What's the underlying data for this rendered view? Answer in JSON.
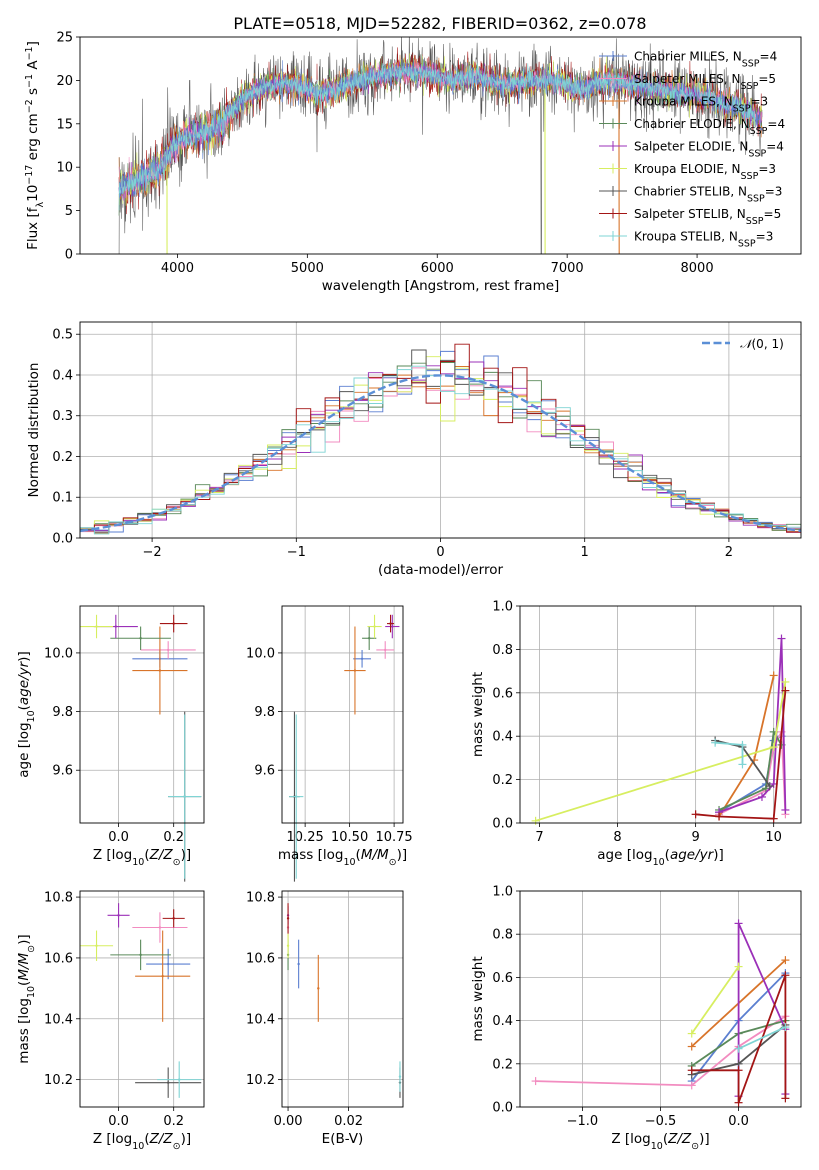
{
  "title": "PLATE=0518, MJD=52282, FIBERID=0362, z=0.078",
  "colors": {
    "Chabrier MILES": "#5b7fd0",
    "Salpeter MILES": "#f28cc0",
    "Kroupa MILES": "#d8742a",
    "Chabrier ELODIE": "#5a8a5a",
    "Salpeter ELODIE": "#9b30b8",
    "Kroupa ELODIE": "#d7ee60",
    "Chabrier STELIB": "#555555",
    "Salpeter STELIB": "#a31515",
    "Kroupa STELIB": "#7fd4d4",
    "gaussian": "#5b8fd6"
  },
  "chart_data": [
    {
      "id": "spectrum",
      "type": "line",
      "title": "PLATE=0518, MJD=52282, FIBERID=0362, z=0.078",
      "xlabel": "wavelength [Angstrom, rest frame]",
      "ylabel": "Flux [f_λ10^-17 erg cm^-2 s^-1 A^-1]",
      "xlim": [
        3250,
        8800
      ],
      "ylim": [
        0,
        25
      ],
      "xticks": [
        4000,
        5000,
        6000,
        7000,
        8000
      ],
      "yticks": [
        0,
        5,
        10,
        15,
        20,
        25
      ],
      "legend_position": "right",
      "legend": [
        {
          "model": "Chabrier MILES",
          "nssp": "4"
        },
        {
          "model": "Salpeter MILES",
          "nssp": "5"
        },
        {
          "model": "Kroupa MILES",
          "nssp": "3"
        },
        {
          "model": "Chabrier ELODIE",
          "nssp": "4"
        },
        {
          "model": "Salpeter ELODIE",
          "nssp": "4"
        },
        {
          "model": "Kroupa ELODIE",
          "nssp": "3"
        },
        {
          "model": "Chabrier STELIB",
          "nssp": "3"
        },
        {
          "model": "Salpeter STELIB",
          "nssp": "5"
        },
        {
          "model": "Kroupa STELIB",
          "nssp": "3"
        }
      ],
      "continuum": [
        [
          3550,
          7.5
        ],
        [
          3700,
          8.5
        ],
        [
          3850,
          9.5
        ],
        [
          3950,
          12.0
        ],
        [
          4050,
          13.5
        ],
        [
          4200,
          14.0
        ],
        [
          4350,
          15.0
        ],
        [
          4500,
          18.0
        ],
        [
          4700,
          19.5
        ],
        [
          4900,
          19.5
        ],
        [
          5100,
          18.5
        ],
        [
          5300,
          19.5
        ],
        [
          5500,
          20.5
        ],
        [
          5700,
          21.0
        ],
        [
          5900,
          21.0
        ],
        [
          6100,
          20.0
        ],
        [
          6300,
          20.5
        ],
        [
          6500,
          19.5
        ],
        [
          6700,
          20.0
        ],
        [
          6900,
          20.0
        ],
        [
          7100,
          19.0
        ],
        [
          7300,
          20.0
        ],
        [
          7500,
          19.5
        ],
        [
          7700,
          19.0
        ],
        [
          7900,
          18.5
        ],
        [
          8100,
          18.0
        ],
        [
          8300,
          17.0
        ],
        [
          8500,
          15.5
        ]
      ],
      "dropouts": [
        {
          "series": "Kroupa ELODIE",
          "x": 3920
        },
        {
          "series": "Kroupa ELODIE",
          "x": 6830
        },
        {
          "series": "Chabrier STELIB",
          "x": 6800
        },
        {
          "series": "Kroupa MILES",
          "x": 7400
        }
      ]
    },
    {
      "id": "residuals",
      "type": "histogram",
      "xlabel": "(data-model)/error",
      "ylabel": "Normed distribution",
      "xlim": [
        -2.5,
        2.5
      ],
      "ylim": [
        0,
        0.53
      ],
      "xticks": [
        -2,
        -1,
        0,
        1,
        2
      ],
      "yticks": [
        0.0,
        0.1,
        0.2,
        0.3,
        0.4,
        0.5
      ],
      "grid": true,
      "legend_position": "top-right",
      "reference": {
        "label": "N(0,1)",
        "mean": 0,
        "sigma": 1
      },
      "bin_edges": [
        -2.6,
        2.6
      ],
      "bin_width": 0.1
    },
    {
      "id": "age-vs-Z",
      "type": "scatter",
      "xlabel": "Z [log10(Z/Z☉)]",
      "ylabel": "age [log10(age/yr)]",
      "xlim": [
        -0.14,
        0.31
      ],
      "ylim": [
        9.42,
        10.16
      ],
      "xticks": [
        0.0,
        0.2
      ],
      "yticks": [
        9.6,
        9.8,
        10.0
      ],
      "grid": true,
      "points": [
        {
          "series": "Chabrier MILES",
          "x": 0.15,
          "y": 9.98,
          "xerr": 0.1,
          "yerr": 0.03
        },
        {
          "series": "Salpeter MILES",
          "x": 0.18,
          "y": 10.01,
          "xerr": 0.1,
          "yerr": 0.03
        },
        {
          "series": "Kroupa MILES",
          "x": 0.15,
          "y": 9.94,
          "xerr": 0.1,
          "yerr": 0.15
        },
        {
          "series": "Chabrier ELODIE",
          "x": 0.08,
          "y": 10.05,
          "xerr": 0.11,
          "yerr": 0.04
        },
        {
          "series": "Salpeter ELODIE",
          "x": -0.01,
          "y": 10.09,
          "xerr": 0.08,
          "yerr": 0.04
        },
        {
          "series": "Kroupa ELODIE",
          "x": -0.08,
          "y": 10.09,
          "xerr": 0.06,
          "yerr": 0.04
        },
        {
          "series": "Chabrier STELIB",
          "x": 0.24,
          "y": 9.51,
          "xerr": 0.06,
          "yerr": 0.29
        },
        {
          "series": "Salpeter STELIB",
          "x": 0.2,
          "y": 10.1,
          "xerr": 0.05,
          "yerr": 0.03
        },
        {
          "series": "Kroupa STELIB",
          "x": 0.24,
          "y": 9.51,
          "xerr": 0.06,
          "yerr": 0.28
        }
      ]
    },
    {
      "id": "age-vs-mass",
      "type": "scatter",
      "xlabel": "mass [log10(M/M☉)]",
      "ylabel": "",
      "xlim": [
        10.12,
        10.8
      ],
      "ylim": [
        9.42,
        10.16
      ],
      "xticks": [
        10.25,
        10.5,
        10.75
      ],
      "yticks": [
        9.6,
        9.8,
        10.0
      ],
      "grid": true,
      "points": [
        {
          "series": "Chabrier MILES",
          "x": 10.57,
          "y": 9.98,
          "xerr": 0.05,
          "yerr": 0.03
        },
        {
          "series": "Salpeter MILES",
          "x": 10.7,
          "y": 10.01,
          "xerr": 0.05,
          "yerr": 0.03
        },
        {
          "series": "Kroupa MILES",
          "x": 10.53,
          "y": 9.94,
          "xerr": 0.06,
          "yerr": 0.15
        },
        {
          "series": "Chabrier ELODIE",
          "x": 10.61,
          "y": 10.05,
          "xerr": 0.04,
          "yerr": 0.04
        },
        {
          "series": "Salpeter ELODIE",
          "x": 10.74,
          "y": 10.09,
          "xerr": 0.04,
          "yerr": 0.04
        },
        {
          "series": "Kroupa ELODIE",
          "x": 10.64,
          "y": 10.09,
          "xerr": 0.04,
          "yerr": 0.04
        },
        {
          "series": "Chabrier STELIB",
          "x": 10.19,
          "y": 9.51,
          "xerr": 0.03,
          "yerr": 0.29
        },
        {
          "series": "Salpeter STELIB",
          "x": 10.73,
          "y": 10.1,
          "xerr": 0.02,
          "yerr": 0.03
        },
        {
          "series": "Kroupa STELIB",
          "x": 10.2,
          "y": 9.51,
          "xerr": 0.04,
          "yerr": 0.28
        }
      ]
    },
    {
      "id": "weight-vs-age",
      "type": "line",
      "xlabel": "age [log10(age/yr)]",
      "ylabel": "mass weight",
      "xlim": [
        6.75,
        10.35
      ],
      "ylim": [
        0,
        1.0
      ],
      "xticks": [
        7,
        8,
        9,
        10
      ],
      "yticks": [
        0.0,
        0.2,
        0.4,
        0.6,
        0.8,
        1.0
      ],
      "grid": true,
      "series": [
        {
          "name": "Chabrier MILES",
          "x": [
            9.3,
            9.9,
            10.0,
            10.1
          ],
          "y": [
            0.05,
            0.18,
            0.38,
            0.4
          ]
        },
        {
          "name": "Salpeter MILES",
          "x": [
            9.3,
            9.9,
            10.0,
            10.1,
            10.15
          ],
          "y": [
            0.04,
            0.15,
            0.35,
            0.42,
            0.04
          ]
        },
        {
          "name": "Kroupa MILES",
          "x": [
            9.3,
            9.75,
            10.0
          ],
          "y": [
            0.03,
            0.29,
            0.68
          ]
        },
        {
          "name": "Chabrier ELODIE",
          "x": [
            9.3,
            9.9,
            10.0,
            10.1
          ],
          "y": [
            0.06,
            0.16,
            0.42,
            0.36
          ]
        },
        {
          "name": "Salpeter ELODIE",
          "x": [
            9.3,
            9.85,
            10.0,
            10.1,
            10.15
          ],
          "y": [
            0.05,
            0.12,
            0.18,
            0.85,
            0.06
          ]
        },
        {
          "name": "Kroupa ELODIE",
          "x": [
            6.95,
            10.0,
            10.15
          ],
          "y": [
            0.01,
            0.35,
            0.65
          ]
        },
        {
          "name": "Chabrier STELIB",
          "x": [
            9.25,
            9.6,
            9.95
          ],
          "y": [
            0.38,
            0.35,
            0.17
          ]
        },
        {
          "name": "Salpeter STELIB",
          "x": [
            9.0,
            9.3,
            10.0,
            10.15
          ],
          "y": [
            0.04,
            0.03,
            0.02,
            0.61
          ]
        },
        {
          "name": "Kroupa STELIB",
          "x": [
            9.25,
            9.6,
            9.6
          ],
          "y": [
            0.37,
            0.36,
            0.27
          ]
        }
      ]
    },
    {
      "id": "mass-vs-Z",
      "type": "scatter",
      "xlabel": "Z [log10(Z/Z☉)]",
      "ylabel": "mass [log10(M/M☉)]",
      "xlim": [
        -0.14,
        0.31
      ],
      "ylim": [
        10.11,
        10.82
      ],
      "xticks": [
        0.0,
        0.2
      ],
      "yticks": [
        10.2,
        10.4,
        10.6,
        10.8
      ],
      "grid": true,
      "points": [
        {
          "series": "Chabrier MILES",
          "x": 0.18,
          "y": 10.58,
          "xerr": 0.08,
          "yerr": 0.05
        },
        {
          "series": "Salpeter MILES",
          "x": 0.15,
          "y": 10.7,
          "xerr": 0.1,
          "yerr": 0.05
        },
        {
          "series": "Kroupa MILES",
          "x": 0.16,
          "y": 10.54,
          "xerr": 0.1,
          "yerr": 0.15
        },
        {
          "series": "Chabrier ELODIE",
          "x": 0.08,
          "y": 10.61,
          "xerr": 0.11,
          "yerr": 0.05
        },
        {
          "series": "Salpeter ELODIE",
          "x": 0.0,
          "y": 10.74,
          "xerr": 0.04,
          "yerr": 0.04
        },
        {
          "series": "Kroupa ELODIE",
          "x": -0.08,
          "y": 10.64,
          "xerr": 0.06,
          "yerr": 0.05
        },
        {
          "series": "Chabrier STELIB",
          "x": 0.18,
          "y": 10.19,
          "xerr": 0.12,
          "yerr": 0.05
        },
        {
          "series": "Salpeter STELIB",
          "x": 0.2,
          "y": 10.73,
          "xerr": 0.04,
          "yerr": 0.03
        },
        {
          "series": "Kroupa STELIB",
          "x": 0.22,
          "y": 10.2,
          "xerr": 0.08,
          "yerr": 0.06
        }
      ]
    },
    {
      "id": "mass-vs-ebv",
      "type": "scatter",
      "xlabel": "E(B-V)",
      "ylabel": "",
      "xlim": [
        -0.002,
        0.038
      ],
      "ylim": [
        10.11,
        10.82
      ],
      "xticks": [
        0.0,
        0.02
      ],
      "yticks": [
        10.2,
        10.4,
        10.6,
        10.8
      ],
      "grid": true,
      "points": [
        {
          "series": "Chabrier MILES",
          "x": 0.0035,
          "y": 10.58,
          "xerr": 0,
          "yerr": 0.08
        },
        {
          "series": "Salpeter MILES",
          "x": 0.0,
          "y": 10.7,
          "xerr": 0,
          "yerr": 0.04
        },
        {
          "series": "Kroupa MILES",
          "x": 0.01,
          "y": 10.5,
          "xerr": 0,
          "yerr": 0.11
        },
        {
          "series": "Chabrier ELODIE",
          "x": 0.0,
          "y": 10.61,
          "xerr": 0,
          "yerr": 0.05
        },
        {
          "series": "Salpeter ELODIE",
          "x": 0.0,
          "y": 10.74,
          "xerr": 0,
          "yerr": 0.03
        },
        {
          "series": "Kroupa ELODIE",
          "x": 0.0,
          "y": 10.64,
          "xerr": 0,
          "yerr": 0.04
        },
        {
          "series": "Chabrier STELIB",
          "x": 0.037,
          "y": 10.19,
          "xerr": 0,
          "yerr": 0.05
        },
        {
          "series": "Salpeter STELIB",
          "x": 0.0,
          "y": 10.73,
          "xerr": 0,
          "yerr": 0.05
        },
        {
          "series": "Kroupa STELIB",
          "x": 0.037,
          "y": 10.21,
          "xerr": 0,
          "yerr": 0.05
        }
      ]
    },
    {
      "id": "weight-vs-Z",
      "type": "line",
      "xlabel": "Z [log10(Z/Z☉)]",
      "ylabel": "mass weight",
      "xlim": [
        -1.4,
        0.4
      ],
      "ylim": [
        0,
        1.0
      ],
      "xticks": [
        -1.0,
        -0.5,
        0.0
      ],
      "yticks": [
        0.0,
        0.2,
        0.4,
        0.6,
        0.8,
        1.0
      ],
      "grid": true,
      "series": [
        {
          "name": "Chabrier MILES",
          "x": [
            -0.3,
            0.0,
            0.3
          ],
          "y": [
            0.12,
            0.4,
            0.62
          ]
        },
        {
          "name": "Salpeter MILES",
          "x": [
            -1.3,
            -0.3,
            0.0,
            0.3
          ],
          "y": [
            0.12,
            0.1,
            0.28,
            0.42
          ]
        },
        {
          "name": "Kroupa MILES",
          "x": [
            -0.3,
            0.3
          ],
          "y": [
            0.28,
            0.68
          ]
        },
        {
          "name": "Chabrier ELODIE",
          "x": [
            -0.3,
            0.0,
            0.3
          ],
          "y": [
            0.19,
            0.34,
            0.4
          ]
        },
        {
          "name": "Salpeter ELODIE",
          "x": [
            0.0,
            0.0,
            0.3,
            0.3
          ],
          "y": [
            0.05,
            0.85,
            0.36,
            0.06
          ]
        },
        {
          "name": "Kroupa ELODIE",
          "x": [
            -0.3,
            0.0
          ],
          "y": [
            0.34,
            0.65
          ]
        },
        {
          "name": "Chabrier STELIB",
          "x": [
            -0.3,
            0.0,
            0.3
          ],
          "y": [
            0.15,
            0.2,
            0.38
          ]
        },
        {
          "name": "Salpeter STELIB",
          "x": [
            -0.3,
            0.0,
            0.0,
            0.3,
            0.3
          ],
          "y": [
            0.17,
            0.17,
            0.02,
            0.61,
            0.04
          ]
        },
        {
          "name": "Kroupa STELIB",
          "x": [
            0.0,
            0.3
          ],
          "y": [
            0.27,
            0.37
          ]
        }
      ]
    }
  ]
}
